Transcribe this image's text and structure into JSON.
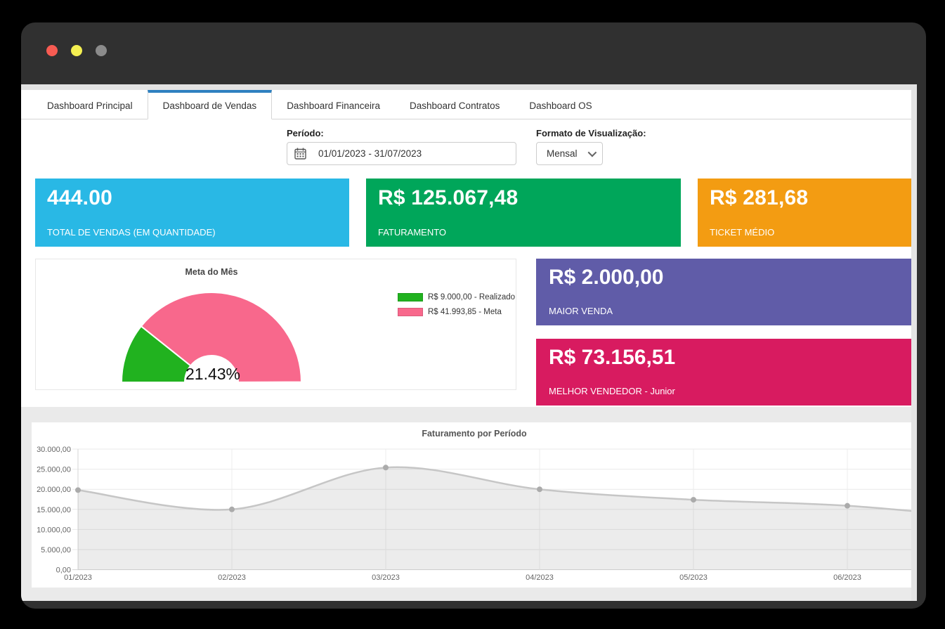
{
  "window": {
    "traffic_lights": [
      {
        "name": "close",
        "color": "#f75b52"
      },
      {
        "name": "minimize",
        "color": "#f4ef51"
      },
      {
        "name": "zoom",
        "color": "#8b8b8b"
      }
    ]
  },
  "tabs": [
    {
      "label": "Dashboard Principal",
      "active": false
    },
    {
      "label": "Dashboard de Vendas",
      "active": true
    },
    {
      "label": "Dashboard Financeira",
      "active": false
    },
    {
      "label": "Dashboard Contratos",
      "active": false
    },
    {
      "label": "Dashboard OS",
      "active": false
    }
  ],
  "filters": {
    "period_label": "Período:",
    "period_value": "01/01/2023 - 31/07/2023",
    "format_label": "Formato de Visualização:",
    "format_value": "Mensal"
  },
  "kpi_cards": [
    {
      "value": "444.00",
      "label": "TOTAL DE VENDAS (EM QUANTIDADE)",
      "color": "#29b8e5"
    },
    {
      "value": "R$ 125.067,48",
      "label": "FATURAMENTO",
      "color": "#00a65a"
    },
    {
      "value": "R$ 281,68",
      "label": "TICKET MÉDIO",
      "color": "#f39c12"
    }
  ],
  "highlight_cards": [
    {
      "value": "R$ 2.000,00",
      "label": "MAIOR VENDA",
      "color": "#605ca8"
    },
    {
      "value": "R$ 73.156,51",
      "label": "MELHOR VENDEDOR - Junior",
      "color": "#d81b60"
    }
  ],
  "accent": {
    "tab_active_blue": "#2e80c0"
  },
  "chart_data": [
    {
      "type": "pie",
      "variant": "half_donut_gauge",
      "title": "Meta do Mês",
      "center_label": "21.43%",
      "percent_realized": 21.43,
      "slices": [
        {
          "label": "R$ 9.000,00 - Realizado",
          "value": 9000.0,
          "color": "#21b21f"
        },
        {
          "label": "R$ 41.993,85 - Meta",
          "value": 41993.85,
          "color": "#f8688c"
        }
      ],
      "legend_position": "right"
    },
    {
      "type": "area",
      "title": "Faturamento por Período",
      "x": [
        "01/2023",
        "02/2023",
        "03/2023",
        "04/2023",
        "05/2023",
        "06/2023"
      ],
      "values": [
        19800,
        15000,
        25400,
        20000,
        17400,
        15900
      ],
      "clipped_next_point_value": 12500,
      "y_ticks": [
        "30.000,00",
        "25.000,00",
        "20.000,00",
        "15.000,00",
        "10.000,00",
        "5.000,00",
        "0,00"
      ],
      "ylim": [
        0,
        30000
      ],
      "grid": true,
      "line_color": "#c6c6c6",
      "fill_color": "rgba(120,120,120,0.14)",
      "point_color": "#ababab",
      "legend": "none"
    }
  ]
}
